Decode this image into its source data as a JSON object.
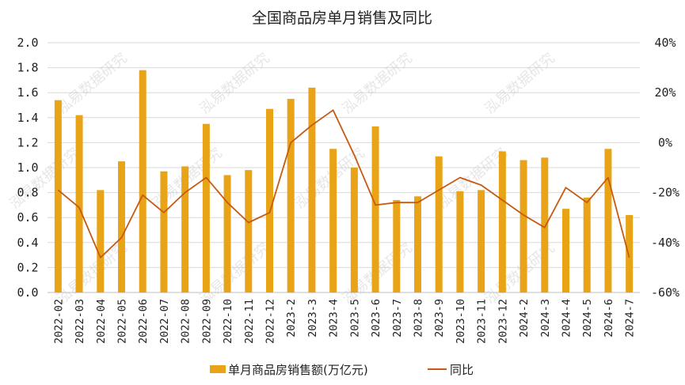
{
  "chart_data": {
    "type": "bar+line",
    "title": "全国商品房单月销售及同比",
    "categories": [
      "2022-02",
      "2022-03",
      "2022-04",
      "2022-05",
      "2022-06",
      "2022-07",
      "2022-08",
      "2022-09",
      "2022-10",
      "2022-11",
      "2022-12",
      "2023-2",
      "2023-3",
      "2023-4",
      "2023-5",
      "2023-6",
      "2023-7",
      "2023-8",
      "2023-9",
      "2023-10",
      "2023-11",
      "2023-12",
      "2024-2",
      "2024-3",
      "2024-4",
      "2024-5",
      "2024-6",
      "2024-7"
    ],
    "series": [
      {
        "name": "单月商品房销售额(万亿元)",
        "type": "bar",
        "axis": "left",
        "color": "#E8A317",
        "values": [
          1.54,
          1.42,
          0.82,
          1.05,
          1.78,
          0.97,
          1.01,
          1.35,
          0.94,
          0.98,
          1.47,
          1.55,
          1.64,
          1.15,
          1.0,
          1.33,
          0.74,
          0.77,
          1.09,
          0.81,
          0.82,
          1.13,
          1.06,
          1.08,
          0.67,
          0.76,
          1.15,
          0.62
        ]
      },
      {
        "name": "同比",
        "type": "line",
        "axis": "right",
        "color": "#C55A11",
        "values": [
          -19,
          -26,
          -46,
          -38,
          -21,
          -28,
          -20,
          -14,
          -24,
          -32,
          -28,
          0,
          7,
          13,
          -5,
          -25,
          -24,
          -24,
          -19,
          -14,
          -17,
          -23,
          -29,
          -34,
          -18,
          -24,
          -14,
          -46
        ]
      }
    ],
    "ylim_left": [
      0,
      2.0
    ],
    "ylim_right": [
      -60,
      40
    ],
    "yticks_left": [
      "0.0",
      "0.2",
      "0.4",
      "0.6",
      "0.8",
      "1.0",
      "1.2",
      "1.4",
      "1.6",
      "1.8",
      "2.0"
    ],
    "yticks_right": [
      "-60%",
      "-40%",
      "-20%",
      "0%",
      "20%",
      "40%"
    ],
    "legend_position": "bottom",
    "watermark": "泓易数据研究",
    "grid": true
  }
}
